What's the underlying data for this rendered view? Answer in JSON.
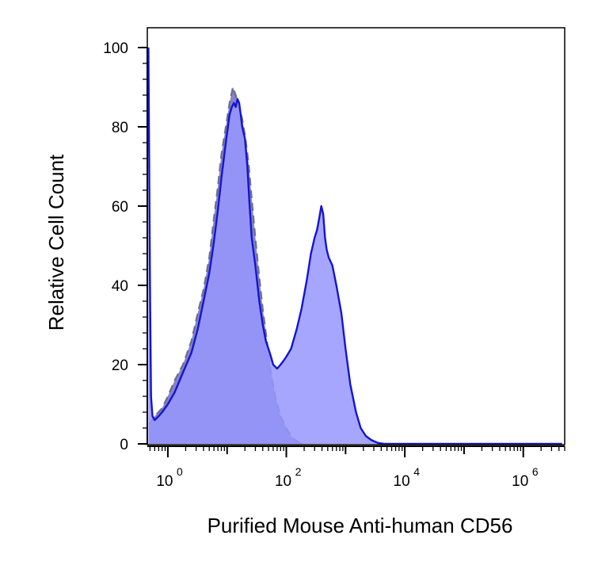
{
  "chart_data": {
    "type": "area",
    "title": "",
    "xlabel": "Purified Mouse Anti-human CD56",
    "ylabel": "Relative Cell Count",
    "xscale": "log",
    "xlim": [
      0.45,
      5000000
    ],
    "ylim": [
      0,
      100
    ],
    "x_ticks": [
      {
        "value": 1,
        "base": "10",
        "exp": "0"
      },
      {
        "value": 100,
        "base": "10",
        "exp": "2"
      },
      {
        "value": 10000,
        "base": "10",
        "exp": "4"
      },
      {
        "value": 1000000,
        "base": "10",
        "exp": "6"
      }
    ],
    "y_ticks": [
      "0",
      "20",
      "40",
      "60",
      "80",
      "100"
    ],
    "grid": false,
    "legend": "none",
    "series": [
      {
        "role": "isotype-control",
        "style": "dashed-gray",
        "fill": "#b4b4c8",
        "stroke": "#7a7a7a",
        "x": [
          0.48,
          0.6,
          0.8,
          1,
          1.3,
          1.8,
          2.5,
          3.2,
          4,
          5,
          6,
          7,
          8,
          9.5,
          11,
          12.5,
          14,
          16,
          18,
          20,
          23,
          26,
          30,
          35,
          40,
          48,
          55,
          65,
          80,
          100,
          120,
          140,
          170,
          200
        ],
        "values": [
          5,
          7,
          9,
          12,
          16,
          20,
          26,
          33,
          39,
          47,
          57,
          65,
          73,
          80,
          86,
          90,
          88,
          85,
          82,
          78,
          71,
          62,
          52,
          42,
          34,
          25,
          18,
          12,
          7,
          4,
          2,
          1,
          0.3,
          0
        ]
      },
      {
        "role": "cd56-stained",
        "style": "solid-blue",
        "fill": "#9696ff",
        "stroke": "#1414d2",
        "x": [
          0.47,
          0.48,
          0.5,
          0.52,
          0.55,
          0.6,
          0.7,
          0.8,
          1,
          1.3,
          1.8,
          2.5,
          3.2,
          4,
          5,
          6,
          7,
          8,
          9.5,
          11,
          12,
          13,
          14,
          15,
          16,
          17,
          18,
          20,
          22,
          24,
          26,
          30,
          35,
          40,
          45,
          50,
          55,
          60,
          70,
          80,
          90,
          100,
          120,
          150,
          180,
          220,
          260,
          300,
          330,
          360,
          390,
          420,
          450,
          480,
          520,
          600,
          700,
          850,
          1000,
          1200,
          1500,
          1800,
          2200,
          2700,
          3200,
          3600,
          4500,
          6000,
          100000,
          4500000
        ],
        "values": [
          100,
          80,
          40,
          12,
          7,
          6,
          7,
          8,
          10,
          13,
          18,
          23,
          29,
          36,
          43,
          51,
          59,
          67,
          76,
          83,
          85,
          86,
          85,
          87,
          86,
          83,
          80,
          77,
          70,
          60,
          52,
          45,
          36,
          30,
          26,
          24,
          22,
          20,
          19,
          20,
          21,
          22,
          24,
          29,
          34,
          41,
          48,
          52,
          54,
          57,
          60,
          58,
          52,
          49,
          47,
          45,
          40,
          33,
          24,
          15,
          8,
          4,
          2,
          1,
          0.5,
          0.2,
          0,
          0,
          0,
          0
        ]
      }
    ]
  }
}
